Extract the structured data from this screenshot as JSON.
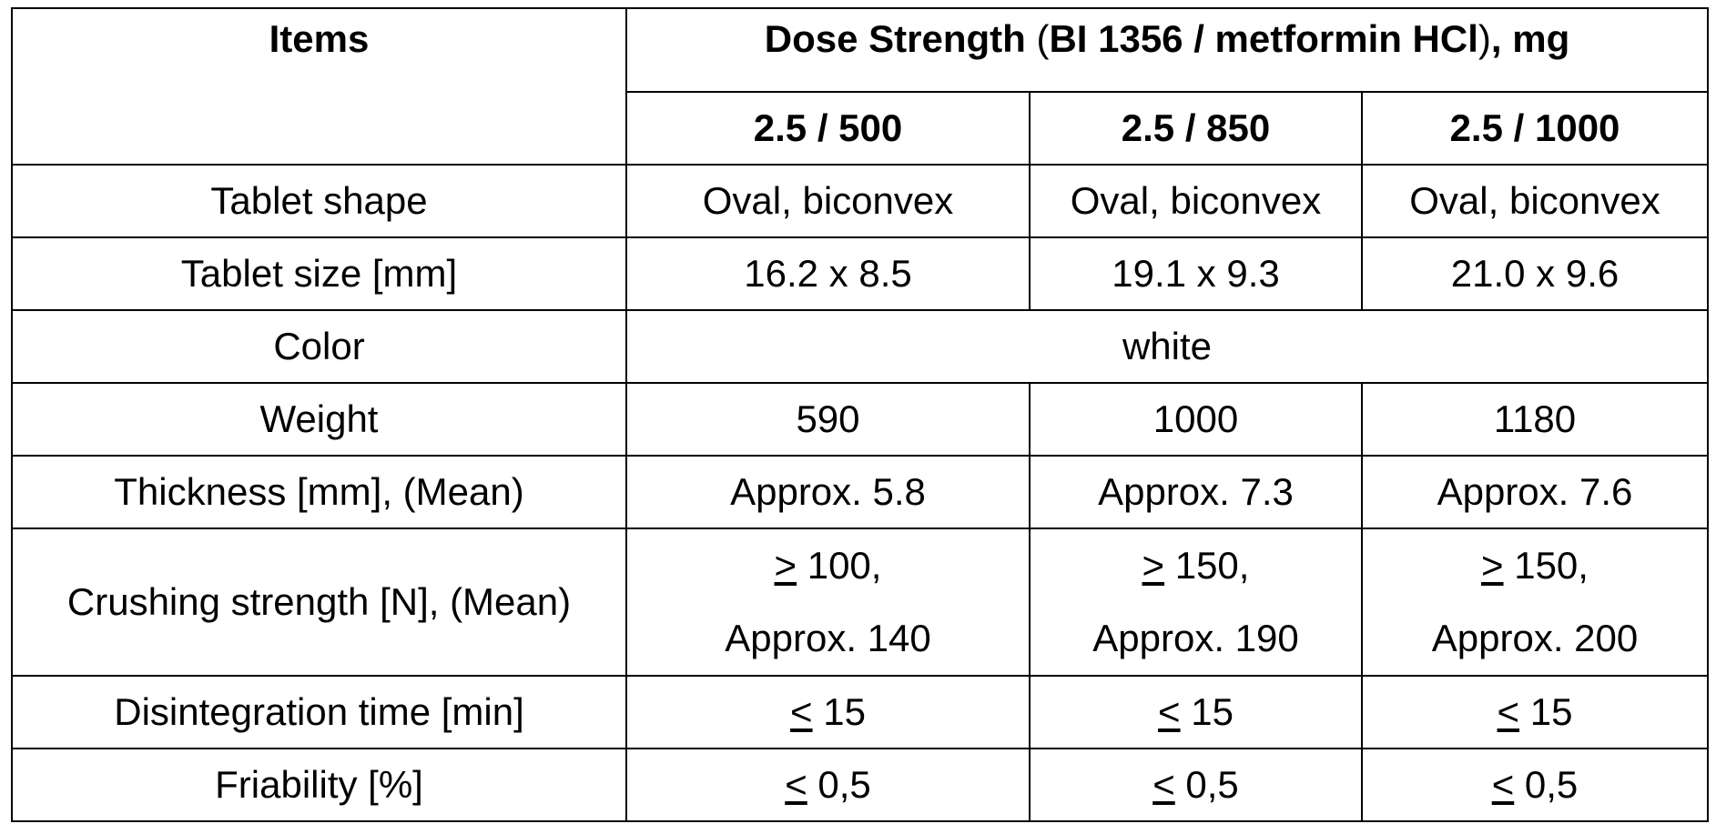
{
  "header": {
    "items_label": "Items",
    "dose_group_bold_1": "Dose Strength",
    "dose_group_paren_open": " (",
    "dose_group_bold_2": "BI 1356 / metformin HCl",
    "dose_group_paren_close": ")",
    "dose_group_bold_3": ", mg",
    "doses": [
      "2.5 / 500",
      "2.5 / 850",
      "2.5 / 1000"
    ]
  },
  "rows": {
    "shape": {
      "label": "Tablet shape",
      "values": [
        "Oval, biconvex",
        "Oval, biconvex",
        "Oval, biconvex"
      ]
    },
    "size": {
      "label": "Tablet size [mm]",
      "values": [
        "16.2 x 8.5",
        "19.1 x 9.3",
        "21.0 x 9.6"
      ]
    },
    "color": {
      "label": "Color",
      "value": "white"
    },
    "weight": {
      "label": "Weight",
      "values": [
        "590",
        "1000",
        "1180"
      ]
    },
    "thickness": {
      "label": "Thickness [mm], (Mean)",
      "values": [
        "Approx. 5.8",
        "Approx. 7.3",
        "Approx. 7.6"
      ]
    },
    "crushing": {
      "label": "Crushing strength [N], (Mean)",
      "values": [
        {
          "symbol": ">",
          "min": " 100,",
          "approx": "Approx. 140"
        },
        {
          "symbol": ">",
          "min": " 150,",
          "approx": "Approx. 190"
        },
        {
          "symbol": ">",
          "min": " 150,",
          "approx": "Approx. 200"
        }
      ]
    },
    "disintegration": {
      "label": "Disintegration time [min]",
      "values": [
        {
          "symbol": "<",
          "value": " 15"
        },
        {
          "symbol": "<",
          "value": " 15"
        },
        {
          "symbol": "<",
          "value": " 15"
        }
      ]
    },
    "friability": {
      "label": "Friability [%]",
      "values": [
        {
          "symbol": "<",
          "value": " 0,5"
        },
        {
          "symbol": "<",
          "value": " 0,5"
        },
        {
          "symbol": "<",
          "value": " 0,5"
        }
      ]
    }
  }
}
